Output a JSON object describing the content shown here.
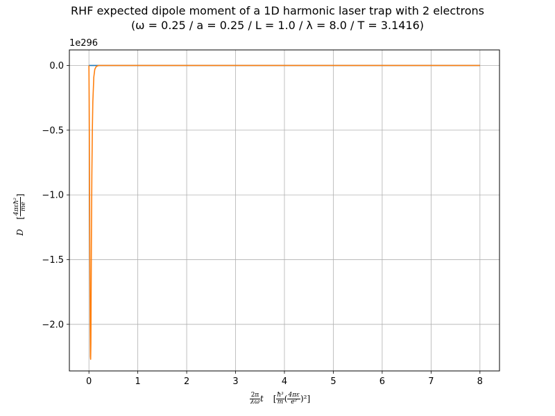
{
  "chart_data": {
    "type": "line",
    "title": "RHF expected dipole moment of a 1D harmonic laser trap with 2 electrons",
    "subtitle": "(ω = 0.25 / a = 0.25 / L = 1.0 / λ = 8.0 / T = 3.1416)",
    "offset_text": "1e296",
    "xlim": [
      -0.4,
      8.4
    ],
    "ylim": [
      -2.36,
      0.12
    ],
    "x_ticks": [
      0,
      1,
      2,
      3,
      4,
      5,
      6,
      7,
      8
    ],
    "x_tick_labels": [
      "0",
      "1",
      "2",
      "3",
      "4",
      "5",
      "6",
      "7",
      "8"
    ],
    "y_ticks": [
      0.0,
      -0.5,
      -1.0,
      -1.5,
      -2.0
    ],
    "y_tick_labels": [
      "0.0",
      "−0.5",
      "−1.0",
      "−1.5",
      "−2.0"
    ],
    "grid": true,
    "series": [
      {
        "color": "#1f77b4",
        "x": [
          0,
          8
        ],
        "values": [
          0,
          0
        ]
      },
      {
        "color": "#ff7f0e",
        "x": [
          0.0,
          0.005,
          0.01,
          0.015,
          0.02,
          0.025,
          0.03,
          0.035,
          0.04,
          0.045,
          0.05,
          0.06,
          0.07,
          0.08,
          0.1,
          0.12,
          0.15,
          0.2,
          0.3,
          0.5,
          1.0,
          2.0,
          4.0,
          6.0,
          8.0
        ],
        "values": [
          0.0,
          -0.25,
          -0.6,
          -1.05,
          -1.55,
          -2.0,
          -2.25,
          -2.27,
          -2.15,
          -1.8,
          -1.4,
          -0.85,
          -0.5,
          -0.28,
          -0.09,
          -0.03,
          -0.008,
          0.0,
          0.0,
          0.0,
          0.0,
          0.0,
          0.0,
          0.0,
          0.0
        ]
      }
    ]
  }
}
